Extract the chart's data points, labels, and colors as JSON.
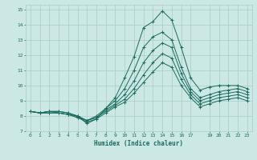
{
  "xlabel": "Humidex (Indice chaleur)",
  "ylabel": "",
  "bg_color": "#cce8e4",
  "grid_color": "#aecfcc",
  "line_color": "#1a6b5e",
  "xlim": [
    -0.5,
    23.5
  ],
  "ylim": [
    7,
    15.3
  ],
  "xticks": [
    0,
    1,
    2,
    3,
    4,
    5,
    6,
    7,
    8,
    9,
    10,
    11,
    12,
    13,
    14,
    15,
    16,
    17,
    19,
    20,
    21,
    22,
    23
  ],
  "yticks": [
    7,
    8,
    9,
    10,
    11,
    12,
    13,
    14,
    15
  ],
  "curves": [
    [
      8.3,
      8.2,
      8.3,
      8.3,
      8.2,
      8.0,
      7.5,
      7.8,
      8.5,
      9.2,
      10.5,
      11.9,
      13.8,
      14.2,
      14.9,
      14.3,
      12.5,
      10.5,
      9.7,
      9.9,
      10.0,
      10.0,
      10.0,
      9.8
    ],
    [
      8.3,
      8.2,
      8.3,
      8.3,
      8.2,
      8.0,
      7.7,
      8.0,
      8.5,
      9.0,
      9.8,
      11.0,
      12.5,
      13.2,
      13.5,
      13.0,
      11.2,
      9.8,
      9.2,
      9.4,
      9.6,
      9.7,
      9.8,
      9.6
    ],
    [
      8.3,
      8.2,
      8.3,
      8.2,
      8.1,
      8.0,
      7.7,
      7.9,
      8.4,
      8.8,
      9.4,
      10.3,
      11.5,
      12.3,
      12.8,
      12.5,
      10.8,
      9.6,
      9.0,
      9.2,
      9.4,
      9.5,
      9.6,
      9.4
    ],
    [
      8.3,
      8.2,
      8.2,
      8.2,
      8.1,
      7.9,
      7.7,
      7.9,
      8.3,
      8.7,
      9.1,
      9.8,
      10.7,
      11.5,
      12.1,
      11.8,
      10.4,
      9.4,
      8.8,
      9.0,
      9.2,
      9.3,
      9.4,
      9.2
    ],
    [
      8.3,
      8.2,
      8.2,
      8.2,
      8.1,
      7.9,
      7.6,
      7.8,
      8.2,
      8.6,
      8.9,
      9.5,
      10.2,
      10.9,
      11.5,
      11.2,
      10.0,
      9.2,
      8.6,
      8.8,
      9.0,
      9.1,
      9.2,
      9.0
    ]
  ]
}
